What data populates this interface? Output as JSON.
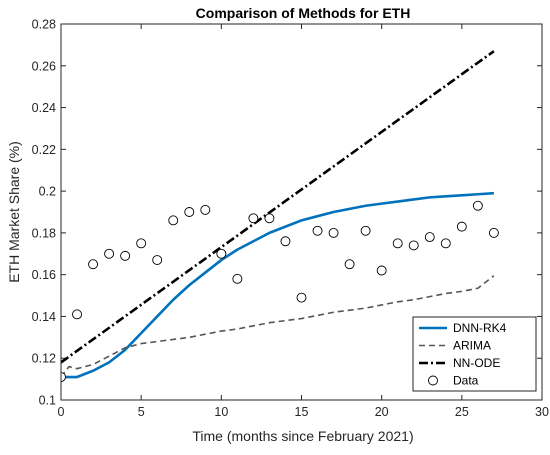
{
  "chart_data": {
    "type": "line",
    "title": "Comparison of Methods for ETH",
    "xlabel": "Time (months since February 2021)",
    "ylabel": "ETH Market Share (%)",
    "xlim": [
      0,
      30
    ],
    "ylim": [
      0.1,
      0.28
    ],
    "xticks": [
      0,
      5,
      10,
      15,
      20,
      25,
      30
    ],
    "yticks": [
      0.1,
      0.12,
      0.14,
      0.16,
      0.18,
      0.2,
      0.22,
      0.24,
      0.26,
      0.28
    ],
    "xtick_labels": [
      "0",
      "5",
      "10",
      "15",
      "20",
      "25",
      "30"
    ],
    "ytick_labels": [
      "0.1",
      "0.12",
      "0.14",
      "0.16",
      "0.18",
      "0.2",
      "0.22",
      "0.24",
      "0.26",
      "0.28"
    ],
    "grid": false,
    "legend_position": "bottom-right",
    "series": [
      {
        "name": "DNN-RK4",
        "kind": "line",
        "style": "solid",
        "color": "#0072BD",
        "x": [
          0,
          1,
          2,
          3,
          4,
          5,
          6,
          7,
          8,
          9,
          10,
          11,
          12,
          13,
          14,
          15,
          16,
          17,
          18,
          19,
          20,
          21,
          22,
          23,
          24,
          25,
          26,
          27
        ],
        "y": [
          0.111,
          0.111,
          0.114,
          0.118,
          0.124,
          0.132,
          0.14,
          0.148,
          0.155,
          0.161,
          0.167,
          0.172,
          0.176,
          0.18,
          0.183,
          0.186,
          0.188,
          0.19,
          0.1915,
          0.193,
          0.194,
          0.195,
          0.196,
          0.197,
          0.1975,
          0.198,
          0.1985,
          0.199
        ]
      },
      {
        "name": "ARIMA",
        "kind": "line",
        "style": "dashed",
        "color": "#555555",
        "x": [
          0,
          0.5,
          1,
          1.5,
          2,
          3,
          4,
          5,
          6,
          7,
          8,
          9,
          10,
          11,
          12,
          13,
          14,
          15,
          16,
          17,
          18,
          19,
          20,
          21,
          22,
          23,
          24,
          25,
          26,
          27
        ],
        "y": [
          0.111,
          0.116,
          0.115,
          0.116,
          0.117,
          0.121,
          0.125,
          0.127,
          0.128,
          0.129,
          0.13,
          0.1315,
          0.133,
          0.134,
          0.1355,
          0.137,
          0.138,
          0.139,
          0.1405,
          0.142,
          0.143,
          0.144,
          0.1455,
          0.147,
          0.148,
          0.1495,
          0.151,
          0.152,
          0.1535,
          0.1595
        ]
      },
      {
        "name": "NN-ODE",
        "kind": "line",
        "style": "dashdot",
        "color": "#000000",
        "x": [
          0,
          27
        ],
        "y": [
          0.118,
          0.267
        ]
      },
      {
        "name": "Data",
        "kind": "scatter",
        "marker": "open-circle",
        "color": "#000000",
        "x": [
          0,
          1,
          2,
          3,
          4,
          5,
          6,
          7,
          8,
          9,
          10,
          11,
          12,
          13,
          14,
          15,
          16,
          17,
          18,
          19,
          20,
          21,
          22,
          23,
          24,
          25,
          26,
          27
        ],
        "y": [
          0.111,
          0.141,
          0.165,
          0.17,
          0.169,
          0.175,
          0.167,
          0.186,
          0.19,
          0.191,
          0.17,
          0.158,
          0.187,
          0.187,
          0.176,
          0.149,
          0.181,
          0.18,
          0.165,
          0.181,
          0.162,
          0.175,
          0.174,
          0.178,
          0.175,
          0.183,
          0.193,
          0.18
        ]
      }
    ]
  }
}
